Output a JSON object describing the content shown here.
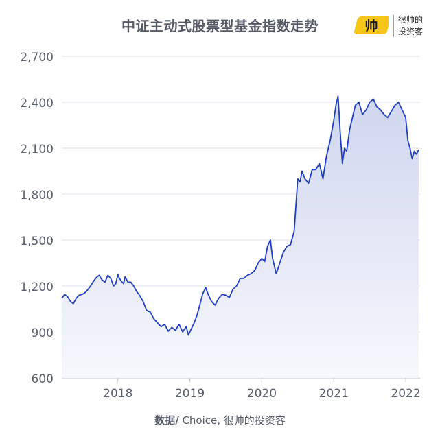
{
  "header": {
    "title": "中证主动式股票型基金指数走势"
  },
  "logo": {
    "mark_text": "帅",
    "line1": "很帅的",
    "line2": "投资客",
    "accent": "#f5c518"
  },
  "footer": {
    "label": "数据/",
    "text": " Choice, 很帅的投资客"
  },
  "chart_data": {
    "type": "area",
    "title": "中证主动式股票型基金指数走势",
    "xlabel": "",
    "ylabel": "",
    "ylim": [
      600,
      2700
    ],
    "yticks": [
      600,
      900,
      1200,
      1500,
      1800,
      2100,
      2400,
      2700
    ],
    "ytick_labels": [
      "600",
      "900",
      "1,200",
      "1,500",
      "1,800",
      "2,100",
      "2,400",
      "2,700"
    ],
    "xticks": [
      2018,
      2019,
      2020,
      2021,
      2022
    ],
    "xtick_labels": [
      "2018",
      "2019",
      "2020",
      "2021",
      "2022"
    ],
    "xlim": [
      2017.22,
      2022.2
    ],
    "grid": true,
    "line_color": "#1f3fbf",
    "fill_color": "#dfe4f4",
    "series": [
      {
        "x": [
          2017.22,
          2017.26,
          2017.3,
          2017.34,
          2017.38,
          2017.42,
          2017.46,
          2017.5,
          2017.54,
          2017.58,
          2017.62,
          2017.66,
          2017.7,
          2017.74,
          2017.78,
          2017.82,
          2017.86,
          2017.9,
          2017.94,
          2017.97,
          2018.0,
          2018.02,
          2018.05,
          2018.08,
          2018.1,
          2018.14,
          2018.18,
          2018.22,
          2018.26,
          2018.3,
          2018.35,
          2018.4,
          2018.45,
          2018.5,
          2018.55,
          2018.6,
          2018.65,
          2018.7,
          2018.75,
          2018.8,
          2018.85,
          2018.9,
          2018.95,
          2018.98,
          2019.02,
          2019.06,
          2019.1,
          2019.14,
          2019.18,
          2019.22,
          2019.26,
          2019.3,
          2019.35,
          2019.4,
          2019.45,
          2019.5,
          2019.55,
          2019.6,
          2019.65,
          2019.7,
          2019.75,
          2019.8,
          2019.85,
          2019.9,
          2019.95,
          2020.0,
          2020.04,
          2020.08,
          2020.12,
          2020.15,
          2020.2,
          2020.25,
          2020.3,
          2020.35,
          2020.4,
          2020.45,
          2020.5,
          2020.53,
          2020.56,
          2020.6,
          2020.65,
          2020.7,
          2020.75,
          2020.8,
          2020.85,
          2020.9,
          2020.95,
          2021.0,
          2021.03,
          2021.06,
          2021.09,
          2021.12,
          2021.15,
          2021.18,
          2021.22,
          2021.26,
          2021.3,
          2021.35,
          2021.4,
          2021.45,
          2021.5,
          2021.55,
          2021.6,
          2021.65,
          2021.7,
          2021.75,
          2021.8,
          2021.85,
          2021.9,
          2021.95,
          2022.0,
          2022.03,
          2022.06,
          2022.09,
          2022.12,
          2022.15,
          2022.18
        ],
        "y": [
          1120,
          1145,
          1130,
          1100,
          1085,
          1120,
          1140,
          1145,
          1155,
          1175,
          1200,
          1230,
          1255,
          1270,
          1240,
          1225,
          1270,
          1250,
          1200,
          1215,
          1275,
          1250,
          1230,
          1215,
          1260,
          1225,
          1225,
          1200,
          1165,
          1140,
          1100,
          1040,
          1030,
          985,
          960,
          935,
          950,
          905,
          930,
          910,
          950,
          900,
          935,
          880,
          920,
          960,
          1010,
          1080,
          1150,
          1190,
          1140,
          1100,
          1075,
          1120,
          1145,
          1140,
          1125,
          1180,
          1200,
          1250,
          1250,
          1270,
          1280,
          1300,
          1350,
          1380,
          1360,
          1460,
          1500,
          1380,
          1280,
          1350,
          1420,
          1460,
          1470,
          1560,
          1900,
          1880,
          1950,
          1900,
          1870,
          1960,
          1960,
          2000,
          1900,
          2050,
          2150,
          2280,
          2380,
          2440,
          2200,
          2000,
          2100,
          2080,
          2220,
          2300,
          2380,
          2400,
          2320,
          2350,
          2400,
          2420,
          2370,
          2350,
          2320,
          2300,
          2340,
          2380,
          2400,
          2350,
          2300,
          2150,
          2100,
          2030,
          2080,
          2060,
          2090
        ]
      }
    ]
  }
}
